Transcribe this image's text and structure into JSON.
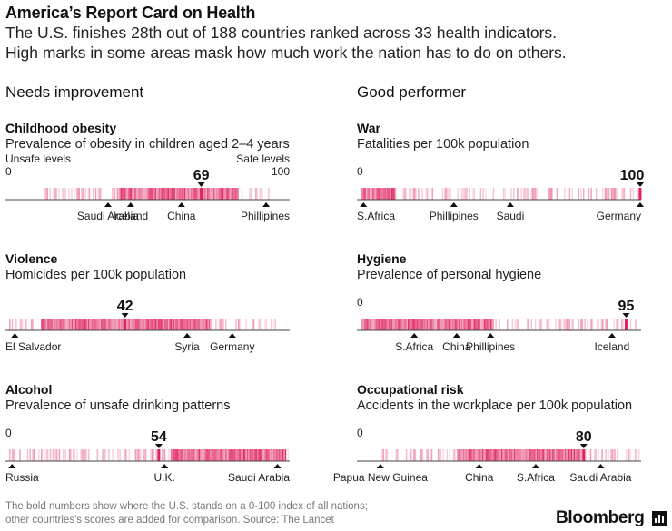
{
  "title": "America’s Report Card on Health",
  "subtitle_lines": [
    "The U.S. finishes 28th out of 188 countries ranked across 33 health indicators.",
    "High marks in some areas mask how much work the nation has to do on others."
  ],
  "sections": {
    "left": "Needs improvement",
    "right": "Good performer"
  },
  "colors": {
    "strip": "#e0245e",
    "marker": "#111111",
    "axis": "#444444"
  },
  "chart_data": [
    {
      "type": "strip",
      "title": "Childhood obesity",
      "subtitle": "Prevalence of obesity in children aged 2–4 years",
      "us_value": 69,
      "min_label": "0",
      "max_label": "100",
      "left_end_label": "Unsafe levels",
      "right_end_label": "Safe levels",
      "countries": [
        {
          "name": "Saudi Arabia",
          "value": 36
        },
        {
          "name": "Iceland",
          "value": 44
        },
        {
          "name": "China",
          "value": 62
        },
        {
          "name": "Phillipines",
          "value": 92
        }
      ],
      "distribution": {
        "start": 13,
        "end": 93,
        "dense_start": 40,
        "dense_end": 82
      }
    },
    {
      "type": "strip",
      "title": "Violence",
      "subtitle": "Homicides per 100k population",
      "us_value": 42,
      "countries": [
        {
          "name": "El Salvador",
          "value": 3
        },
        {
          "name": "Syria",
          "value": 64
        },
        {
          "name": "Germany",
          "value": 80
        }
      ],
      "distribution": {
        "start": 1,
        "end": 96,
        "dense_start": 12,
        "dense_end": 72
      }
    },
    {
      "type": "strip",
      "title": "Alcohol",
      "subtitle": "Prevalence of unsafe drinking patterns",
      "us_value": 54,
      "min_label": "0",
      "countries": [
        {
          "name": "Russia",
          "value": 2
        },
        {
          "name": "U.K.",
          "value": 56
        },
        {
          "name": "Saudi Arabia",
          "value": 96
        }
      ],
      "distribution": {
        "start": 1,
        "end": 100,
        "dense_start": 58,
        "dense_end": 99
      }
    },
    {
      "type": "strip",
      "title": "War",
      "subtitle": "Fatalities per 100k population",
      "us_value": 100,
      "min_label": "0",
      "countries": [
        {
          "name": "S.Africa",
          "value": 2
        },
        {
          "name": "Phillipines",
          "value": 34
        },
        {
          "name": "Saudi",
          "value": 54
        },
        {
          "name": "Germany",
          "value": 100
        }
      ],
      "distribution": {
        "start": 1,
        "end": 100,
        "dense_start": 1,
        "dense_end": 13
      }
    },
    {
      "type": "strip",
      "title": "Hygiene",
      "subtitle": "Prevalence of personal hygiene",
      "us_value": 95,
      "min_label": "0",
      "countries": [
        {
          "name": "S.Africa",
          "value": 20
        },
        {
          "name": "China",
          "value": 35
        },
        {
          "name": "Phillipines",
          "value": 47
        },
        {
          "name": "Iceland",
          "value": 90
        }
      ],
      "distribution": {
        "start": 1,
        "end": 99,
        "dense_start": 1,
        "dense_end": 48
      }
    },
    {
      "type": "strip",
      "title": "Occupational risk",
      "subtitle": "Accidents in the workplace per 100k population",
      "us_value": 80,
      "min_label": "0",
      "countries": [
        {
          "name": "Papua New Guinea",
          "value": 8
        },
        {
          "name": "China",
          "value": 43
        },
        {
          "name": "S.Africa",
          "value": 63
        },
        {
          "name": "Saudi Arabia",
          "value": 86
        }
      ],
      "distribution": {
        "start": 8,
        "end": 100,
        "dense_start": 35,
        "dense_end": 80
      }
    }
  ],
  "footnote_lines": [
    "The bold numbers show where the U.S. stands on a 0-100 index of all nations;",
    "other countries's scores are added for comparison. Source: The Lancet"
  ],
  "brand": "Bloomberg"
}
